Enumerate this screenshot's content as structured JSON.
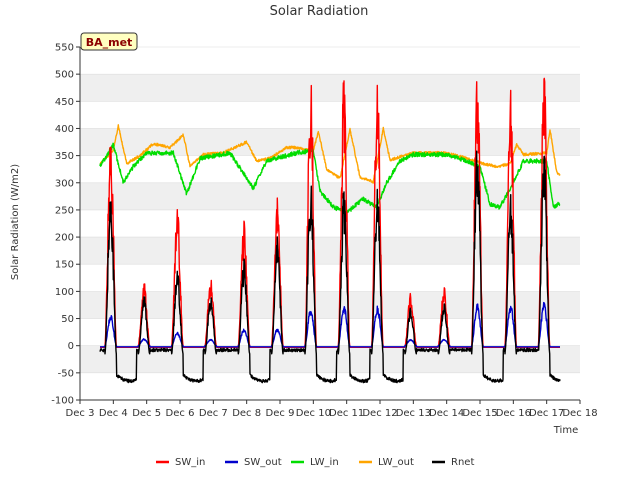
{
  "chart_data": {
    "type": "line",
    "title": "Solar Radiation",
    "xlabel": "Time",
    "ylabel": "Solar Radiation (W/m2)",
    "station_badge": "BA_met",
    "xlim": [
      3,
      18
    ],
    "ylim": [
      -100,
      550
    ],
    "yticks": [
      -100,
      -50,
      0,
      50,
      100,
      150,
      200,
      250,
      300,
      350,
      400,
      450,
      500,
      550
    ],
    "xticks": [
      3,
      4,
      5,
      6,
      7,
      8,
      9,
      10,
      11,
      12,
      13,
      14,
      15,
      16,
      17,
      18
    ],
    "xtick_labels": [
      "Dec 3",
      "Dec 4",
      "Dec 5",
      "Dec 6",
      "Dec 7",
      "Dec 8",
      "Dec 9",
      "Dec 10",
      "Dec 11",
      "Dec 12",
      "Dec 13",
      "Dec 14",
      "Dec 15",
      "Dec 16",
      "Dec 17",
      "Dec 18"
    ],
    "x_start": 3.6,
    "x_end": 17.4,
    "daily_peaks": {
      "days": [
        4,
        5,
        6,
        7,
        8,
        9,
        10,
        11,
        12,
        13,
        14,
        15,
        16,
        17
      ],
      "SW_in": [
        400,
        120,
        265,
        125,
        230,
        278,
        505,
        503,
        500,
        97,
        108,
        515,
        482,
        522
      ],
      "SW_out": [
        57,
        13,
        25,
        12,
        32,
        32,
        70,
        75,
        75,
        12,
        12,
        78,
        77,
        80
      ],
      "Rnet": [
        290,
        95,
        145,
        92,
        160,
        205,
        310,
        292,
        300,
        70,
        78,
        380,
        285,
        370
      ]
    },
    "series": [
      {
        "name": "SW_in",
        "color": "#ff0000"
      },
      {
        "name": "SW_out",
        "color": "#0000cc"
      },
      {
        "name": "LW_in",
        "color": "#00dd00"
      },
      {
        "name": "LW_out",
        "color": "#ffa500"
      },
      {
        "name": "Rnet",
        "color": "#000000"
      }
    ],
    "LW_in_daily": [
      [
        3.6,
        330
      ],
      [
        4.0,
        370
      ],
      [
        4.3,
        300
      ],
      [
        4.6,
        330
      ],
      [
        5.0,
        355
      ],
      [
        5.8,
        355
      ],
      [
        6.2,
        280
      ],
      [
        6.6,
        345
      ],
      [
        7.5,
        355
      ],
      [
        8.2,
        290
      ],
      [
        8.6,
        340
      ],
      [
        9.5,
        355
      ],
      [
        10.0,
        360
      ],
      [
        10.2,
        285
      ],
      [
        10.6,
        255
      ],
      [
        11.0,
        245
      ],
      [
        11.5,
        270
      ],
      [
        11.9,
        255
      ],
      [
        12.2,
        300
      ],
      [
        12.6,
        340
      ],
      [
        13.0,
        352
      ],
      [
        14.0,
        352
      ],
      [
        14.6,
        340
      ],
      [
        15.0,
        330
      ],
      [
        15.3,
        260
      ],
      [
        15.6,
        255
      ],
      [
        16.0,
        300
      ],
      [
        16.3,
        340
      ],
      [
        17.0,
        340
      ],
      [
        17.2,
        255
      ],
      [
        17.4,
        262
      ]
    ],
    "LW_out_daily": [
      [
        3.6,
        335
      ],
      [
        4.0,
        360
      ],
      [
        4.15,
        405
      ],
      [
        4.4,
        335
      ],
      [
        4.8,
        350
      ],
      [
        5.2,
        372
      ],
      [
        5.7,
        365
      ],
      [
        6.1,
        388
      ],
      [
        6.3,
        330
      ],
      [
        6.7,
        352
      ],
      [
        7.3,
        355
      ],
      [
        8.0,
        375
      ],
      [
        8.3,
        340
      ],
      [
        8.7,
        345
      ],
      [
        9.2,
        365
      ],
      [
        9.5,
        365
      ],
      [
        10.0,
        358
      ],
      [
        10.15,
        395
      ],
      [
        10.4,
        325
      ],
      [
        10.8,
        308
      ],
      [
        11.1,
        398
      ],
      [
        11.4,
        310
      ],
      [
        11.8,
        302
      ],
      [
        12.1,
        400
      ],
      [
        12.3,
        342
      ],
      [
        13.0,
        355
      ],
      [
        14.0,
        355
      ],
      [
        14.6,
        345
      ],
      [
        15.1,
        335
      ],
      [
        15.5,
        330
      ],
      [
        15.9,
        335
      ],
      [
        16.1,
        370
      ],
      [
        16.3,
        352
      ],
      [
        17.0,
        355
      ],
      [
        17.1,
        398
      ],
      [
        17.3,
        320
      ],
      [
        17.4,
        315
      ]
    ]
  }
}
